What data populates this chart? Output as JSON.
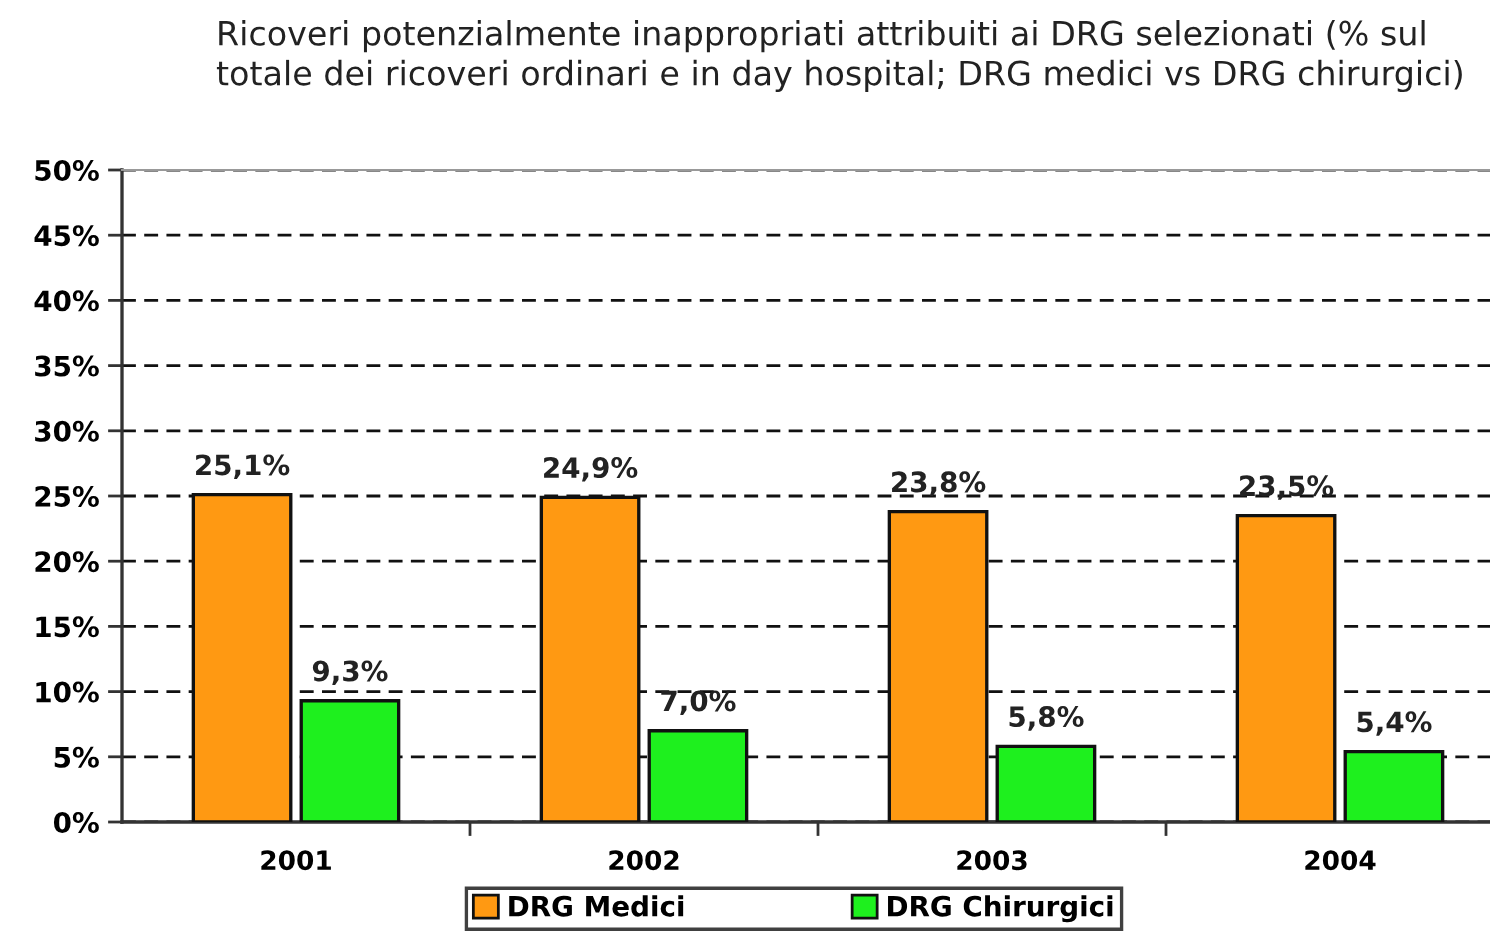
{
  "chart_data": {
    "type": "bar",
    "title": "Ricoveri potenzialmente inappropriati attribuiti ai DRG selezionati (% sul totale dei ricoveri ordinari e in day hospital; DRG medici vs DRG chirurgici)",
    "categories": [
      "2001",
      "2002",
      "2003",
      "2004"
    ],
    "series": [
      {
        "name": "DRG Medici",
        "color": "#ff9912",
        "values": [
          25.1,
          24.9,
          23.8,
          23.5
        ],
        "value_labels": [
          "25,1%",
          "24,9%",
          "23,8%",
          "23,5%"
        ]
      },
      {
        "name": "DRG Chirurgici",
        "color": "#1ef01e",
        "values": [
          9.3,
          7.0,
          5.8,
          5.4
        ],
        "value_labels": [
          "9,3%",
          "7,0%",
          "5,8%",
          "5,4%"
        ]
      }
    ],
    "ylim": [
      0,
      50
    ],
    "yticks": [
      {
        "value": 0,
        "label": "0%"
      },
      {
        "value": 5,
        "label": "5%"
      },
      {
        "value": 10,
        "label": "10%"
      },
      {
        "value": 15,
        "label": "15%"
      },
      {
        "value": 20,
        "label": "20%"
      },
      {
        "value": 25,
        "label": "25%"
      },
      {
        "value": 30,
        "label": "30%"
      },
      {
        "value": 35,
        "label": "35%"
      },
      {
        "value": 40,
        "label": "40%"
      },
      {
        "value": 45,
        "label": "45%"
      },
      {
        "value": 50,
        "label": "50%"
      }
    ],
    "grid": "y",
    "legend": "bottom"
  }
}
